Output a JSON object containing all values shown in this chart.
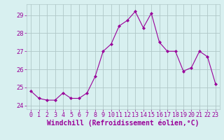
{
  "x": [
    0,
    1,
    2,
    3,
    4,
    5,
    6,
    7,
    8,
    9,
    10,
    11,
    12,
    13,
    14,
    15,
    16,
    17,
    18,
    19,
    20,
    21,
    22,
    23
  ],
  "y": [
    24.8,
    24.4,
    24.3,
    24.3,
    24.7,
    24.4,
    24.4,
    24.7,
    25.6,
    27.0,
    27.4,
    28.4,
    28.7,
    29.2,
    28.3,
    29.1,
    27.5,
    27.0,
    27.0,
    25.9,
    26.1,
    27.0,
    26.7,
    25.2
  ],
  "line_color": "#990099",
  "marker": "D",
  "marker_size": 2,
  "bg_color": "#d8f0f0",
  "grid_color": "#b0c8c8",
  "xlabel": "Windchill (Refroidissement éolien,°C)",
  "xlabel_fontsize": 7,
  "tick_fontsize": 6,
  "ylim": [
    23.8,
    29.6
  ],
  "yticks": [
    24,
    25,
    26,
    27,
    28,
    29
  ],
  "xticks": [
    0,
    1,
    2,
    3,
    4,
    5,
    6,
    7,
    8,
    9,
    10,
    11,
    12,
    13,
    14,
    15,
    16,
    17,
    18,
    19,
    20,
    21,
    22,
    23
  ]
}
